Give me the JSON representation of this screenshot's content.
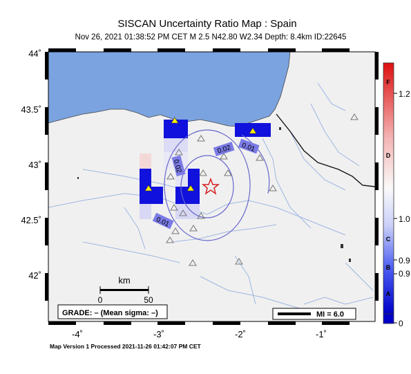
{
  "header": {
    "title": "SISCAN Uncertainty Ratio Map : Spain",
    "subtitle": "Nov 26, 2021 01:38:52 PM CET   M 2.5   N42.80 W2.34   Depth: 8.4km   ID:22645"
  },
  "axes": {
    "lat_labels": [
      "44˚",
      "43.5˚",
      "43˚",
      "42.5˚",
      "42˚"
    ],
    "lon_labels": [
      "-4˚",
      "-3˚",
      "-2˚",
      "-1˚"
    ]
  },
  "scalebar": {
    "unit": "km",
    "tick_start": "0",
    "tick_end": "50"
  },
  "grade_box": {
    "text": "GRADE: – (Mean sigma: –)"
  },
  "mi_box": {
    "text": "MI = 6.0"
  },
  "contours": [
    "0.02",
    "0.01",
    "0.02",
    "0.01"
  ],
  "colorbar": {
    "grades": [
      "F",
      "D",
      "C",
      "B",
      "A"
    ],
    "values": [
      "1.2",
      "1.0",
      "0.9",
      "0.9",
      "0"
    ]
  },
  "footer": {
    "text": "Map Version 1 Processed 2021-11-26 01:42:07 PM CET"
  },
  "colors": {
    "sea": "#7ba3e0",
    "land": "#f0f0f0",
    "rivers": "#8fb0e0",
    "cell_blue": "#1111dd",
    "epicenter": "#d42020",
    "station": "#ffee00"
  }
}
